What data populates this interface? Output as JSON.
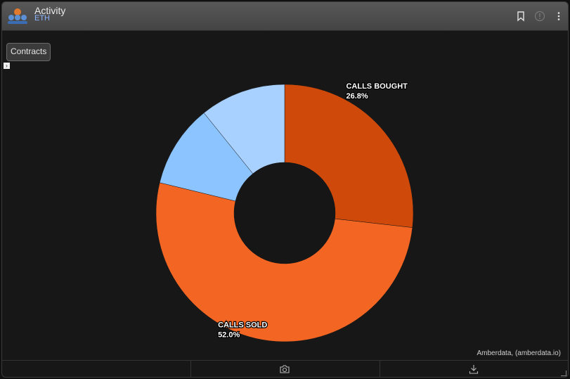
{
  "header": {
    "title": "Activity",
    "subtitle": "ETH",
    "icons": [
      "bookmark-icon",
      "info-icon",
      "more-vertical-icon"
    ]
  },
  "toolbar": {
    "contracts_label": "Contracts",
    "expand_glyph": "›"
  },
  "attribution": "Amberdata, (amberdata.io)",
  "footer": {
    "icons": [
      "camera-icon",
      "download-icon"
    ]
  },
  "colors": {
    "calls_bought": "#cf4a0a",
    "calls_sold": "#f26522",
    "puts_a": "#8cc4ff",
    "puts_b": "#a9d1ff",
    "hole": "#161616"
  },
  "chart_data": {
    "type": "pie",
    "donut": true,
    "slices": [
      {
        "label": "CALLS BOUGHT",
        "pct_label": "26.8%",
        "value": 26.8,
        "color": "#cf4a0a"
      },
      {
        "label": "CALLS SOLD",
        "pct_label": "52.0%",
        "value": 52.0,
        "color": "#f26522"
      },
      {
        "label": "",
        "pct_label": "",
        "value": 10.4,
        "color": "#8cc4ff"
      },
      {
        "label": "",
        "pct_label": "",
        "value": 10.8,
        "color": "#a9d1ff"
      }
    ]
  }
}
